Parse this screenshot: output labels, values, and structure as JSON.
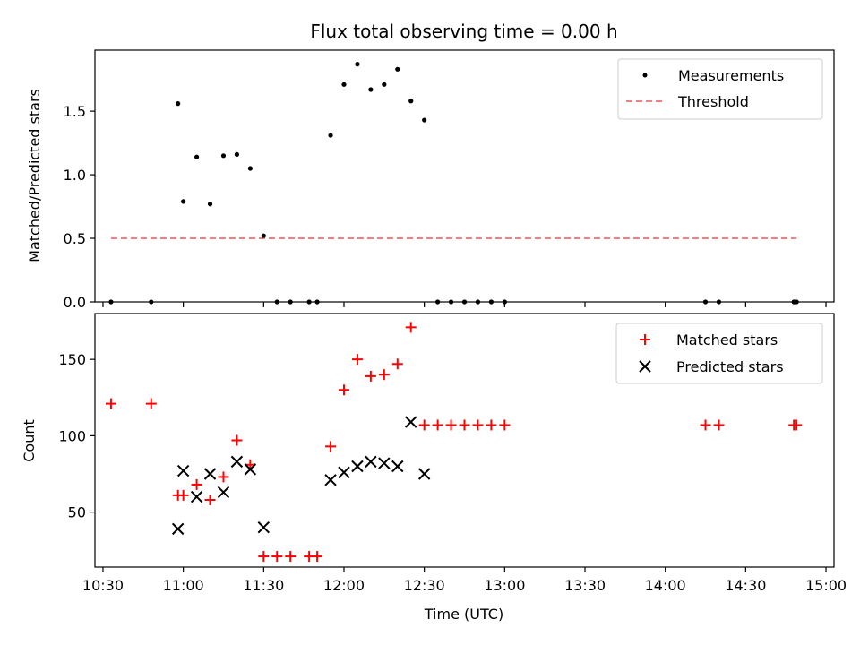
{
  "chart_data": [
    {
      "type": "scatter",
      "title": "Flux total observing time = 0.00 h",
      "ylabel": "Matched/Predicted stars",
      "xlabel": "",
      "ylim": [
        0,
        1.98
      ],
      "yticks": [
        0.0,
        0.5,
        1.0,
        1.5
      ],
      "ytick_labels": [
        "0.0",
        "0.5",
        "1.0",
        "1.5"
      ],
      "legend_position": "top-right",
      "colors": {
        "measurements": "#000000",
        "threshold": "#f08080"
      },
      "series": [
        {
          "name": "Measurements",
          "style": "dots",
          "x": [
            "10:33",
            "10:48",
            "10:58",
            "11:00",
            "11:05",
            "11:10",
            "11:15",
            "11:20",
            "11:25",
            "11:30",
            "11:35",
            "11:40",
            "11:47",
            "11:50",
            "11:55",
            "12:00",
            "12:05",
            "12:10",
            "12:15",
            "12:20",
            "12:25",
            "12:30",
            "12:35",
            "12:40",
            "12:45",
            "12:50",
            "12:55",
            "13:00",
            "14:15",
            "14:20",
            "14:48",
            "14:49"
          ],
          "y": [
            0,
            0,
            1.56,
            0.79,
            1.14,
            0.77,
            1.15,
            1.16,
            1.05,
            0.52,
            0,
            0,
            0,
            0,
            1.31,
            1.71,
            1.87,
            1.67,
            1.71,
            1.83,
            1.58,
            1.43,
            0,
            0,
            0,
            0,
            0,
            0,
            0,
            0,
            0,
            0
          ]
        },
        {
          "name": "Threshold",
          "style": "dashed-line",
          "x": [
            "10:33",
            "14:49"
          ],
          "y": [
            0.5,
            0.5
          ]
        }
      ]
    },
    {
      "type": "scatter",
      "title": "",
      "ylabel": "Count",
      "xlabel": "Time (UTC)",
      "ylim": [
        14,
        180
      ],
      "yticks": [
        50,
        100,
        150
      ],
      "ytick_labels": [
        "50",
        "100",
        "150"
      ],
      "xticks": [
        "10:30",
        "11:00",
        "11:30",
        "12:00",
        "12:30",
        "13:00",
        "13:30",
        "14:00",
        "14:30",
        "15:00"
      ],
      "xlim": [
        "10:27",
        "15:03"
      ],
      "legend_position": "top-right",
      "colors": {
        "matched": "#ff0000",
        "predicted": "#000000"
      },
      "series": [
        {
          "name": "Matched stars",
          "marker": "plus",
          "x": [
            "10:33",
            "10:48",
            "10:58",
            "11:00",
            "11:05",
            "11:10",
            "11:15",
            "11:20",
            "11:25",
            "11:30",
            "11:35",
            "11:40",
            "11:47",
            "11:50",
            "11:55",
            "12:00",
            "12:05",
            "12:10",
            "12:15",
            "12:20",
            "12:25",
            "12:30",
            "12:35",
            "12:40",
            "12:45",
            "12:50",
            "12:55",
            "13:00",
            "14:15",
            "14:20",
            "14:48",
            "14:49"
          ],
          "y": [
            121,
            121,
            61,
            61,
            68,
            58,
            73,
            97,
            81,
            21,
            21,
            21,
            21,
            21,
            93,
            130,
            150,
            139,
            140,
            147,
            171,
            107,
            107,
            107,
            107,
            107,
            107,
            107,
            107,
            107,
            107,
            107
          ]
        },
        {
          "name": "Predicted stars",
          "marker": "x",
          "x": [
            "10:58",
            "11:00",
            "11:05",
            "11:10",
            "11:15",
            "11:20",
            "11:25",
            "11:30",
            "11:55",
            "12:00",
            "12:05",
            "12:10",
            "12:15",
            "12:20",
            "12:25",
            "12:30"
          ],
          "y": [
            39,
            77,
            60,
            75,
            63,
            83,
            78,
            40,
            71,
            76,
            80,
            83,
            82,
            80,
            109,
            75
          ]
        }
      ]
    }
  ]
}
